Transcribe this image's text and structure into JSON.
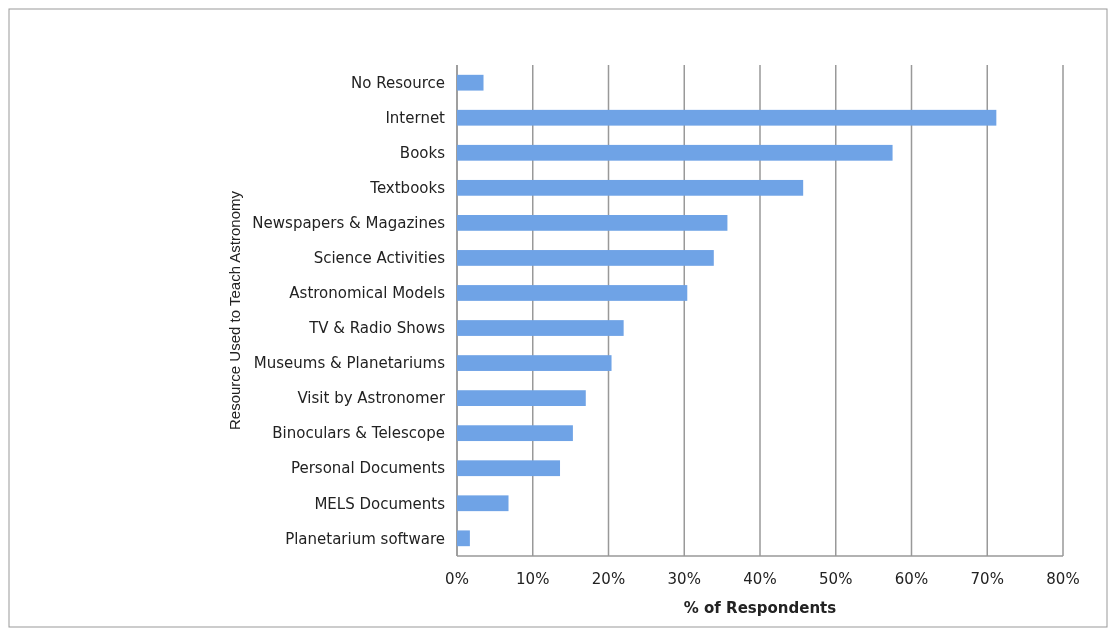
{
  "chart_data": {
    "type": "bar",
    "orientation": "horizontal",
    "xlabel": "% of Respondents",
    "ylabel": "Resource Used to Teach Astronomy",
    "categories": [
      "No Resource",
      "Internet",
      "Books",
      "Textbooks",
      "Newspapers & Magazines",
      "Science Activities",
      "Astronomical Models",
      "TV & Radio Shows",
      "Museums & Planetariums",
      "Visit by Astronomer",
      "Binoculars & Telescope",
      "Personal Documents",
      "MELS Documents",
      "Planetarium software"
    ],
    "values": [
      3.5,
      71.2,
      57.5,
      45.7,
      35.7,
      33.9,
      30.4,
      22.0,
      20.4,
      17.0,
      15.3,
      13.6,
      6.8,
      1.7
    ],
    "color": "#6fa3e6",
    "xlim": [
      0,
      80
    ],
    "xticks": [
      {
        "value": 0,
        "label": "0%"
      },
      {
        "value": 10,
        "label": "10%"
      },
      {
        "value": 20,
        "label": "20%"
      },
      {
        "value": 30,
        "label": "30%"
      },
      {
        "value": 40,
        "label": "40%"
      },
      {
        "value": 50,
        "label": "50%"
      },
      {
        "value": 60,
        "label": "60%"
      },
      {
        "value": 70,
        "label": "70%"
      },
      {
        "value": 80,
        "label": "80%"
      }
    ],
    "grid": "x"
  }
}
